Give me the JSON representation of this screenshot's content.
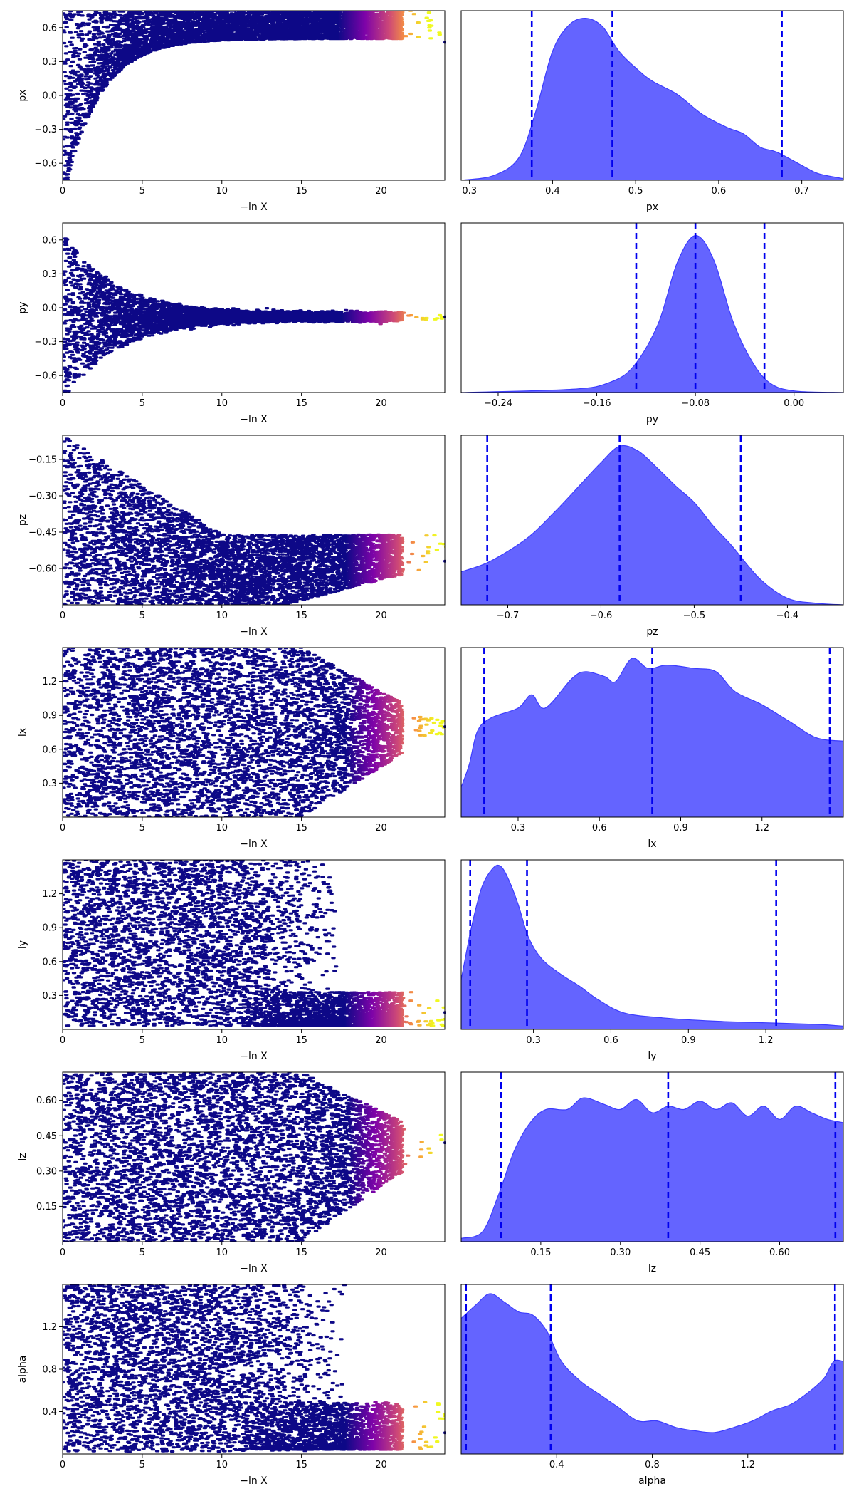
{
  "colors": {
    "kde_fill": "#6464ff",
    "kde_edge": "#3c3cff",
    "quantile_line": "#0000ee",
    "colormap": [
      "#0d0887",
      "#7e03a8",
      "#cc4778",
      "#f89540",
      "#f0f921"
    ]
  },
  "chart_data": [
    {
      "param": "px",
      "trace": {
        "type": "scatter",
        "xlabel": "−ln X",
        "ylabel": "px",
        "xlim": [
          0,
          24
        ],
        "ylim": [
          -0.75,
          0.75
        ],
        "xticks": [
          "0",
          "5",
          "10",
          "15",
          "20"
        ],
        "yticks": [
          "−0.6",
          "−0.3",
          "0.0",
          "0.3",
          "0.6"
        ],
        "ytick_values": [
          -0.6,
          -0.3,
          0.0,
          0.3,
          0.6
        ],
        "shape": "lower-funnel",
        "converged_value": 0.47,
        "xmax": 23.7
      },
      "posterior": {
        "type": "area",
        "xlabel": "px",
        "xlim": [
          0.29,
          0.75
        ],
        "xticks": [
          "0.3",
          "0.4",
          "0.5",
          "0.6",
          "0.7"
        ],
        "xtick_values": [
          0.3,
          0.4,
          0.5,
          0.6,
          0.7
        ],
        "quantiles": [
          0.375,
          0.472,
          0.676
        ],
        "x": [
          0.29,
          0.33,
          0.36,
          0.38,
          0.4,
          0.42,
          0.44,
          0.46,
          0.48,
          0.5,
          0.52,
          0.55,
          0.58,
          0.61,
          0.63,
          0.65,
          0.67,
          0.7,
          0.72,
          0.75
        ],
        "density": [
          0.0,
          0.03,
          0.14,
          0.42,
          0.78,
          0.94,
          0.98,
          0.93,
          0.78,
          0.68,
          0.6,
          0.52,
          0.4,
          0.32,
          0.28,
          0.2,
          0.17,
          0.09,
          0.04,
          0.01
        ]
      }
    },
    {
      "param": "py",
      "trace": {
        "type": "scatter",
        "xlabel": "−ln X",
        "ylabel": "py",
        "xlim": [
          0,
          24
        ],
        "ylim": [
          -0.75,
          0.75
        ],
        "xticks": [
          "0",
          "5",
          "10",
          "15",
          "20"
        ],
        "yticks": [
          "−0.6",
          "−0.3",
          "0.0",
          "0.3",
          "0.6"
        ],
        "ytick_values": [
          -0.6,
          -0.3,
          0.0,
          0.3,
          0.6
        ],
        "shape": "funnel",
        "converged_value": -0.08,
        "xmax": 23.7
      },
      "posterior": {
        "type": "area",
        "xlabel": "py",
        "xlim": [
          -0.27,
          0.04
        ],
        "xticks": [
          "−0.24",
          "−0.16",
          "−0.08",
          "0.00"
        ],
        "xtick_values": [
          -0.24,
          -0.16,
          -0.08,
          0.0
        ],
        "quantiles": [
          -0.128,
          -0.08,
          -0.024
        ],
        "x": [
          -0.27,
          -0.18,
          -0.15,
          -0.13,
          -0.11,
          -0.095,
          -0.08,
          -0.065,
          -0.05,
          -0.035,
          -0.02,
          0.0,
          0.04
        ],
        "density": [
          0.0,
          0.02,
          0.06,
          0.16,
          0.42,
          0.78,
          0.95,
          0.8,
          0.44,
          0.2,
          0.06,
          0.01,
          0.0
        ]
      }
    },
    {
      "param": "pz",
      "trace": {
        "type": "scatter",
        "xlabel": "−ln X",
        "ylabel": "pz",
        "xlim": [
          0,
          24
        ],
        "ylim": [
          -0.75,
          -0.05
        ],
        "xticks": [
          "0",
          "5",
          "10",
          "15",
          "20"
        ],
        "yticks": [
          "−0.15",
          "−0.30",
          "−0.45",
          "−0.60"
        ],
        "ytick_values": [
          -0.15,
          -0.3,
          -0.45,
          -0.6
        ],
        "shape": "triangle",
        "converged_value": -0.57,
        "xmax": 23.7
      },
      "posterior": {
        "type": "area",
        "xlabel": "pz",
        "xlim": [
          -0.75,
          -0.34
        ],
        "xticks": [
          "−0.7",
          "−0.6",
          "−0.5",
          "−0.4"
        ],
        "xtick_values": [
          -0.7,
          -0.6,
          -0.5,
          -0.4
        ],
        "quantiles": [
          -0.722,
          -0.58,
          -0.45
        ],
        "x": [
          -0.75,
          -0.72,
          -0.68,
          -0.65,
          -0.62,
          -0.6,
          -0.58,
          -0.56,
          -0.54,
          -0.52,
          -0.5,
          -0.48,
          -0.46,
          -0.43,
          -0.4,
          -0.37,
          -0.34
        ],
        "density": [
          0.2,
          0.26,
          0.4,
          0.56,
          0.74,
          0.86,
          0.96,
          0.93,
          0.83,
          0.72,
          0.62,
          0.48,
          0.36,
          0.16,
          0.04,
          0.01,
          0.0
        ]
      }
    },
    {
      "param": "lx",
      "trace": {
        "type": "scatter",
        "xlabel": "−ln X",
        "ylabel": "lx",
        "xlim": [
          0,
          24
        ],
        "ylim": [
          0.0,
          1.5
        ],
        "xticks": [
          "0",
          "5",
          "10",
          "15",
          "20"
        ],
        "yticks": [
          "0.3",
          "0.6",
          "0.9",
          "1.2"
        ],
        "ytick_values": [
          0.3,
          0.6,
          0.9,
          1.2
        ],
        "shape": "uniform-wedge",
        "converged_value": 0.8,
        "xmax": 23.7
      },
      "posterior": {
        "type": "area",
        "xlabel": "lx",
        "xlim": [
          0.09,
          1.5
        ],
        "xticks": [
          "0.3",
          "0.6",
          "0.9",
          "1.2"
        ],
        "xtick_values": [
          0.3,
          0.6,
          0.9,
          1.2
        ],
        "quantiles": [
          0.175,
          0.795,
          1.45
        ],
        "x": [
          0.09,
          0.12,
          0.15,
          0.2,
          0.3,
          0.35,
          0.4,
          0.5,
          0.55,
          0.62,
          0.66,
          0.72,
          0.78,
          0.85,
          0.95,
          1.03,
          1.1,
          1.2,
          1.3,
          1.4,
          1.5
        ],
        "density": [
          0.18,
          0.32,
          0.52,
          0.6,
          0.66,
          0.74,
          0.66,
          0.84,
          0.88,
          0.85,
          0.82,
          0.96,
          0.9,
          0.92,
          0.9,
          0.88,
          0.76,
          0.68,
          0.58,
          0.48,
          0.46
        ]
      }
    },
    {
      "param": "ly",
      "trace": {
        "type": "scatter",
        "xlabel": "−ln X",
        "ylabel": "ly",
        "xlim": [
          0,
          24
        ],
        "ylim": [
          0.0,
          1.5
        ],
        "xticks": [
          "0",
          "5",
          "10",
          "15",
          "20"
        ],
        "yticks": [
          "0.3",
          "0.6",
          "0.9",
          "1.2"
        ],
        "ytick_values": [
          0.3,
          0.6,
          0.9,
          1.2
        ],
        "shape": "low-cluster",
        "converged_value": 0.15,
        "xmax": 23.7
      },
      "posterior": {
        "type": "area",
        "xlabel": "ly",
        "xlim": [
          0.02,
          1.5
        ],
        "xticks": [
          "0.3",
          "0.6",
          "0.9",
          "1.2"
        ],
        "xtick_values": [
          0.3,
          0.6,
          0.9,
          1.2
        ],
        "quantiles": [
          0.055,
          0.275,
          1.24
        ],
        "x": [
          0.02,
          0.06,
          0.1,
          0.14,
          0.17,
          0.2,
          0.24,
          0.28,
          0.33,
          0.4,
          0.48,
          0.55,
          0.65,
          0.8,
          1.0,
          1.2,
          1.4,
          1.5
        ],
        "density": [
          0.3,
          0.62,
          0.86,
          0.97,
          0.99,
          0.92,
          0.76,
          0.56,
          0.43,
          0.34,
          0.26,
          0.18,
          0.1,
          0.07,
          0.05,
          0.04,
          0.03,
          0.02
        ]
      }
    },
    {
      "param": "lz",
      "trace": {
        "type": "scatter",
        "xlabel": "−ln X",
        "ylabel": "lz",
        "xlim": [
          0,
          24
        ],
        "ylim": [
          0.0,
          0.72
        ],
        "xticks": [
          "0",
          "5",
          "10",
          "15",
          "20"
        ],
        "yticks": [
          "0.15",
          "0.30",
          "0.45",
          "0.60"
        ],
        "ytick_values": [
          0.15,
          0.3,
          0.45,
          0.6
        ],
        "shape": "uniform-wedge",
        "converged_value": 0.42,
        "xmax": 23.7
      },
      "posterior": {
        "type": "area",
        "xlabel": "lz",
        "xlim": [
          0.0,
          0.72
        ],
        "xticks": [
          "0.15",
          "0.30",
          "0.45",
          "0.60"
        ],
        "xtick_values": [
          0.15,
          0.3,
          0.45,
          0.6
        ],
        "quantiles": [
          0.075,
          0.39,
          0.705
        ],
        "x": [
          0.0,
          0.04,
          0.07,
          0.1,
          0.13,
          0.16,
          0.2,
          0.23,
          0.27,
          0.3,
          0.33,
          0.36,
          0.39,
          0.42,
          0.45,
          0.48,
          0.51,
          0.54,
          0.57,
          0.6,
          0.63,
          0.66,
          0.69,
          0.72
        ],
        "density": [
          0.02,
          0.06,
          0.28,
          0.55,
          0.72,
          0.8,
          0.8,
          0.87,
          0.83,
          0.8,
          0.86,
          0.78,
          0.82,
          0.8,
          0.85,
          0.8,
          0.84,
          0.76,
          0.82,
          0.74,
          0.82,
          0.78,
          0.74,
          0.72
        ]
      }
    },
    {
      "param": "alpha",
      "trace": {
        "type": "scatter",
        "xlabel": "−ln X",
        "ylabel": "alpha",
        "xlim": [
          0,
          24
        ],
        "ylim": [
          0.0,
          1.6
        ],
        "xticks": [
          "0",
          "5",
          "10",
          "15",
          "20"
        ],
        "yticks": [
          "0.4",
          "0.8",
          "1.2"
        ],
        "ytick_values": [
          0.4,
          0.8,
          1.2
        ],
        "shape": "low-cluster-alpha",
        "converged_value": 0.2,
        "xmax": 23.7
      },
      "posterior": {
        "type": "area",
        "xlabel": "alpha",
        "xlim": [
          0.0,
          1.6
        ],
        "xticks": [
          "0.4",
          "0.8",
          "1.2"
        ],
        "xtick_values": [
          0.4,
          0.8,
          1.2
        ],
        "quantiles": [
          0.02,
          0.375,
          1.565
        ],
        "x": [
          0.0,
          0.06,
          0.12,
          0.18,
          0.24,
          0.3,
          0.36,
          0.42,
          0.5,
          0.58,
          0.66,
          0.74,
          0.82,
          0.9,
          0.98,
          1.06,
          1.14,
          1.22,
          1.3,
          1.38,
          1.46,
          1.52,
          1.56,
          1.6
        ],
        "density": [
          0.82,
          0.9,
          0.97,
          0.92,
          0.86,
          0.84,
          0.74,
          0.56,
          0.44,
          0.36,
          0.28,
          0.2,
          0.2,
          0.16,
          0.14,
          0.13,
          0.16,
          0.2,
          0.26,
          0.3,
          0.38,
          0.46,
          0.56,
          0.56
        ]
      }
    }
  ]
}
